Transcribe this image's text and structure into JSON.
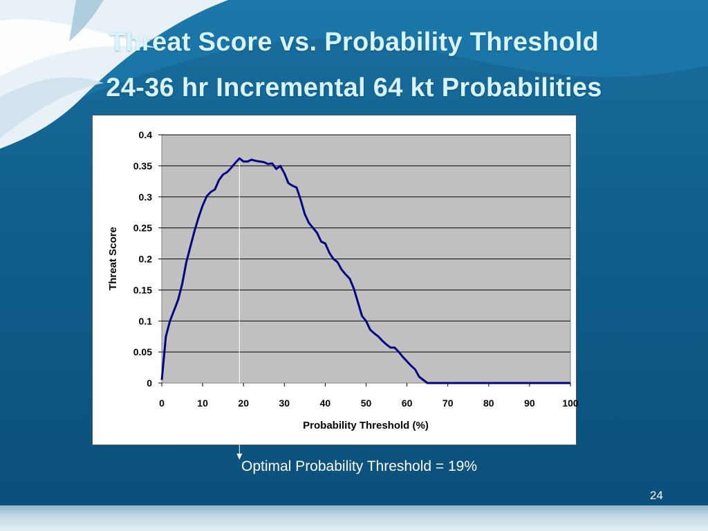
{
  "slide": {
    "title_line_1": "Threat Score vs. Probability Threshold",
    "title_line_2": "24-36 hr Incremental 64 kt Probabilities",
    "annotation": "Optimal Probability Threshold = 19%",
    "page_number": "24",
    "colors": {
      "background": "#0f5d8a",
      "title": "#d8f4ff",
      "line": "#000080",
      "plot_area": "#c0c0c0"
    }
  },
  "chart_data": {
    "type": "line",
    "title": "",
    "xlabel": "Probability Threshold (%)",
    "ylabel": "Threat Score",
    "xlim": [
      0,
      100
    ],
    "ylim": [
      0,
      0.4
    ],
    "x_ticks": [
      "0",
      "10",
      "20",
      "30",
      "40",
      "50",
      "60",
      "70",
      "80",
      "90",
      "100"
    ],
    "y_ticks": [
      "0",
      "0.05",
      "0.1",
      "0.15",
      "0.2",
      "0.25",
      "0.3",
      "0.35",
      "0.4"
    ],
    "grid": "horizontal",
    "legend": "none",
    "marker_x": 19,
    "series": [
      {
        "color": "#000080",
        "points": [
          [
            0,
            0.005
          ],
          [
            1,
            0.075
          ],
          [
            2,
            0.1
          ],
          [
            3,
            0.117
          ],
          [
            4,
            0.134
          ],
          [
            5,
            0.16
          ],
          [
            6,
            0.195
          ],
          [
            7,
            0.22
          ],
          [
            8,
            0.245
          ],
          [
            9,
            0.267
          ],
          [
            10,
            0.286
          ],
          [
            11,
            0.301
          ],
          [
            12,
            0.308
          ],
          [
            13,
            0.312
          ],
          [
            14,
            0.327
          ],
          [
            15,
            0.336
          ],
          [
            16,
            0.34
          ],
          [
            17,
            0.347
          ],
          [
            18,
            0.355
          ],
          [
            19,
            0.362
          ],
          [
            20,
            0.357
          ],
          [
            21,
            0.357
          ],
          [
            22,
            0.36
          ],
          [
            23,
            0.358
          ],
          [
            24,
            0.357
          ],
          [
            25,
            0.356
          ],
          [
            26,
            0.353
          ],
          [
            27,
            0.354
          ],
          [
            28,
            0.345
          ],
          [
            29,
            0.35
          ],
          [
            30,
            0.338
          ],
          [
            31,
            0.322
          ],
          [
            32,
            0.318
          ],
          [
            33,
            0.315
          ],
          [
            34,
            0.295
          ],
          [
            35,
            0.272
          ],
          [
            36,
            0.258
          ],
          [
            37,
            0.25
          ],
          [
            38,
            0.242
          ],
          [
            39,
            0.228
          ],
          [
            40,
            0.225
          ],
          [
            41,
            0.21
          ],
          [
            42,
            0.2
          ],
          [
            43,
            0.195
          ],
          [
            44,
            0.183
          ],
          [
            45,
            0.175
          ],
          [
            46,
            0.168
          ],
          [
            47,
            0.152
          ],
          [
            48,
            0.13
          ],
          [
            49,
            0.108
          ],
          [
            50,
            0.1
          ],
          [
            51,
            0.086
          ],
          [
            52,
            0.08
          ],
          [
            53,
            0.075
          ],
          [
            54,
            0.068
          ],
          [
            55,
            0.062
          ],
          [
            56,
            0.057
          ],
          [
            57,
            0.057
          ],
          [
            58,
            0.05
          ],
          [
            59,
            0.042
          ],
          [
            60,
            0.035
          ],
          [
            61,
            0.028
          ],
          [
            62,
            0.022
          ],
          [
            63,
            0.01
          ],
          [
            64,
            0.005
          ],
          [
            65,
            0
          ],
          [
            70,
            0
          ],
          [
            75,
            0
          ],
          [
            80,
            0
          ],
          [
            85,
            0
          ],
          [
            90,
            0
          ],
          [
            95,
            0
          ],
          [
            100,
            0
          ]
        ]
      }
    ]
  }
}
